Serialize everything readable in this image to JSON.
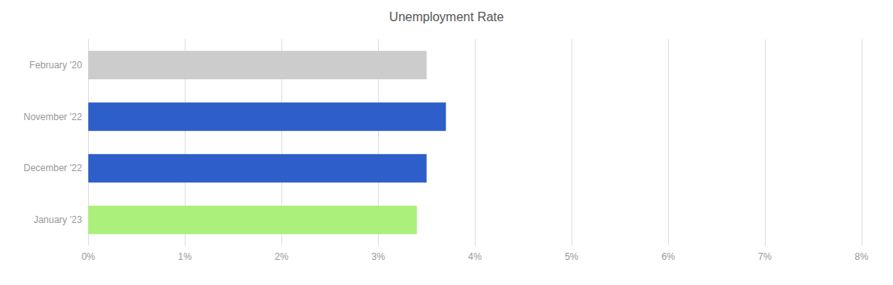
{
  "chart_data": {
    "type": "bar",
    "orientation": "horizontal",
    "title": "Unemployment Rate",
    "categories": [
      "February '20",
      "November '22",
      "December '22",
      "January '23"
    ],
    "values": [
      0.035,
      0.037,
      0.035,
      0.034
    ],
    "colors": [
      "#cccccc",
      "#2d5ec9",
      "#2d5ec9",
      "#aaf07a"
    ],
    "xlim": [
      0,
      0.08
    ],
    "xticks": [
      {
        "value": 0,
        "label": "0%"
      },
      {
        "value": 0.01,
        "label": "1%"
      },
      {
        "value": 0.02,
        "label": "2%"
      },
      {
        "value": 0.03,
        "label": "3%"
      },
      {
        "value": 0.04,
        "label": "4%"
      },
      {
        "value": 0.05,
        "label": "5%"
      },
      {
        "value": 0.06,
        "label": "6%"
      },
      {
        "value": 0.07,
        "label": "7%"
      },
      {
        "value": 0.08,
        "label": "8%"
      }
    ],
    "grid": true
  }
}
